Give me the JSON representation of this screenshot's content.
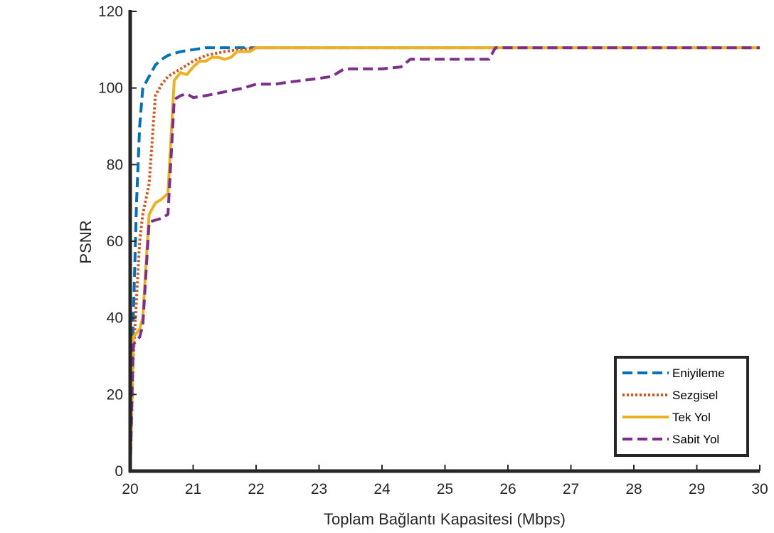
{
  "chart_data": {
    "type": "line",
    "xlabel": "Toplam Bağlantı Kapasitesi (Mbps)",
    "ylabel": "PSNR",
    "xlim": [
      20,
      30
    ],
    "ylim": [
      0,
      120
    ],
    "xticks": [
      20,
      21,
      22,
      23,
      24,
      25,
      26,
      27,
      28,
      29,
      30
    ],
    "yticks": [
      0,
      20,
      40,
      60,
      80,
      100,
      120
    ],
    "grid": false,
    "legend_position": "bottom-right",
    "series": [
      {
        "name": "Eniyileme",
        "color": "#0072BD",
        "style": "dashed",
        "x": [
          20,
          20.05,
          20.1,
          20.15,
          20.2,
          20.3,
          20.4,
          20.5,
          20.6,
          20.8,
          21.0,
          21.2,
          22,
          30
        ],
        "y": [
          0,
          40,
          70,
          90,
          100,
          103,
          106,
          107.5,
          108.5,
          109.5,
          110,
          110.5,
          110.5,
          110.5
        ]
      },
      {
        "name": "Sezgisel",
        "color": "#D95319",
        "style": "dotted",
        "x": [
          20,
          20.05,
          20.1,
          20.15,
          20.2,
          20.3,
          20.4,
          20.5,
          20.6,
          20.8,
          21.0,
          21.2,
          21.5,
          21.8,
          22,
          30
        ],
        "y": [
          0,
          30,
          45,
          60,
          67,
          75,
          98,
          101,
          103,
          105,
          107,
          108.5,
          109.5,
          110.2,
          110.5,
          110.5
        ]
      },
      {
        "name": "Tek Yol",
        "color": "#EDB120",
        "style": "solid",
        "x": [
          20,
          20.05,
          20.15,
          20.2,
          20.3,
          20.4,
          20.5,
          20.6,
          20.7,
          20.8,
          20.9,
          21.0,
          21.1,
          21.2,
          21.3,
          21.4,
          21.5,
          21.6,
          21.7,
          21.8,
          21.9,
          22.0,
          30
        ],
        "y": [
          0,
          35,
          37,
          40,
          67,
          70,
          71,
          72.5,
          102,
          104,
          103.5,
          105.5,
          107,
          107,
          108,
          108,
          107.5,
          108,
          109.5,
          109.5,
          109.5,
          110.5,
          110.5
        ]
      },
      {
        "name": "Sabit Yol",
        "color": "#7E2F8E",
        "style": "dashed",
        "x": [
          20,
          20.05,
          20.15,
          20.2,
          20.3,
          20.4,
          20.5,
          20.6,
          20.7,
          20.8,
          20.9,
          21.0,
          21.2,
          21.5,
          21.8,
          22.0,
          22.3,
          22.5,
          23.0,
          23.2,
          23.4,
          24.0,
          24.3,
          24.45,
          25.0,
          25.7,
          25.8,
          26.0,
          30
        ],
        "y": [
          0,
          33,
          35,
          38,
          65,
          65.5,
          66,
          67,
          97,
          98,
          98.5,
          97.5,
          98,
          99,
          100,
          101,
          101,
          101.5,
          102.5,
          103,
          105,
          105,
          105.5,
          107.5,
          107.5,
          107.5,
          110.5,
          110.5,
          110.5
        ]
      }
    ]
  }
}
